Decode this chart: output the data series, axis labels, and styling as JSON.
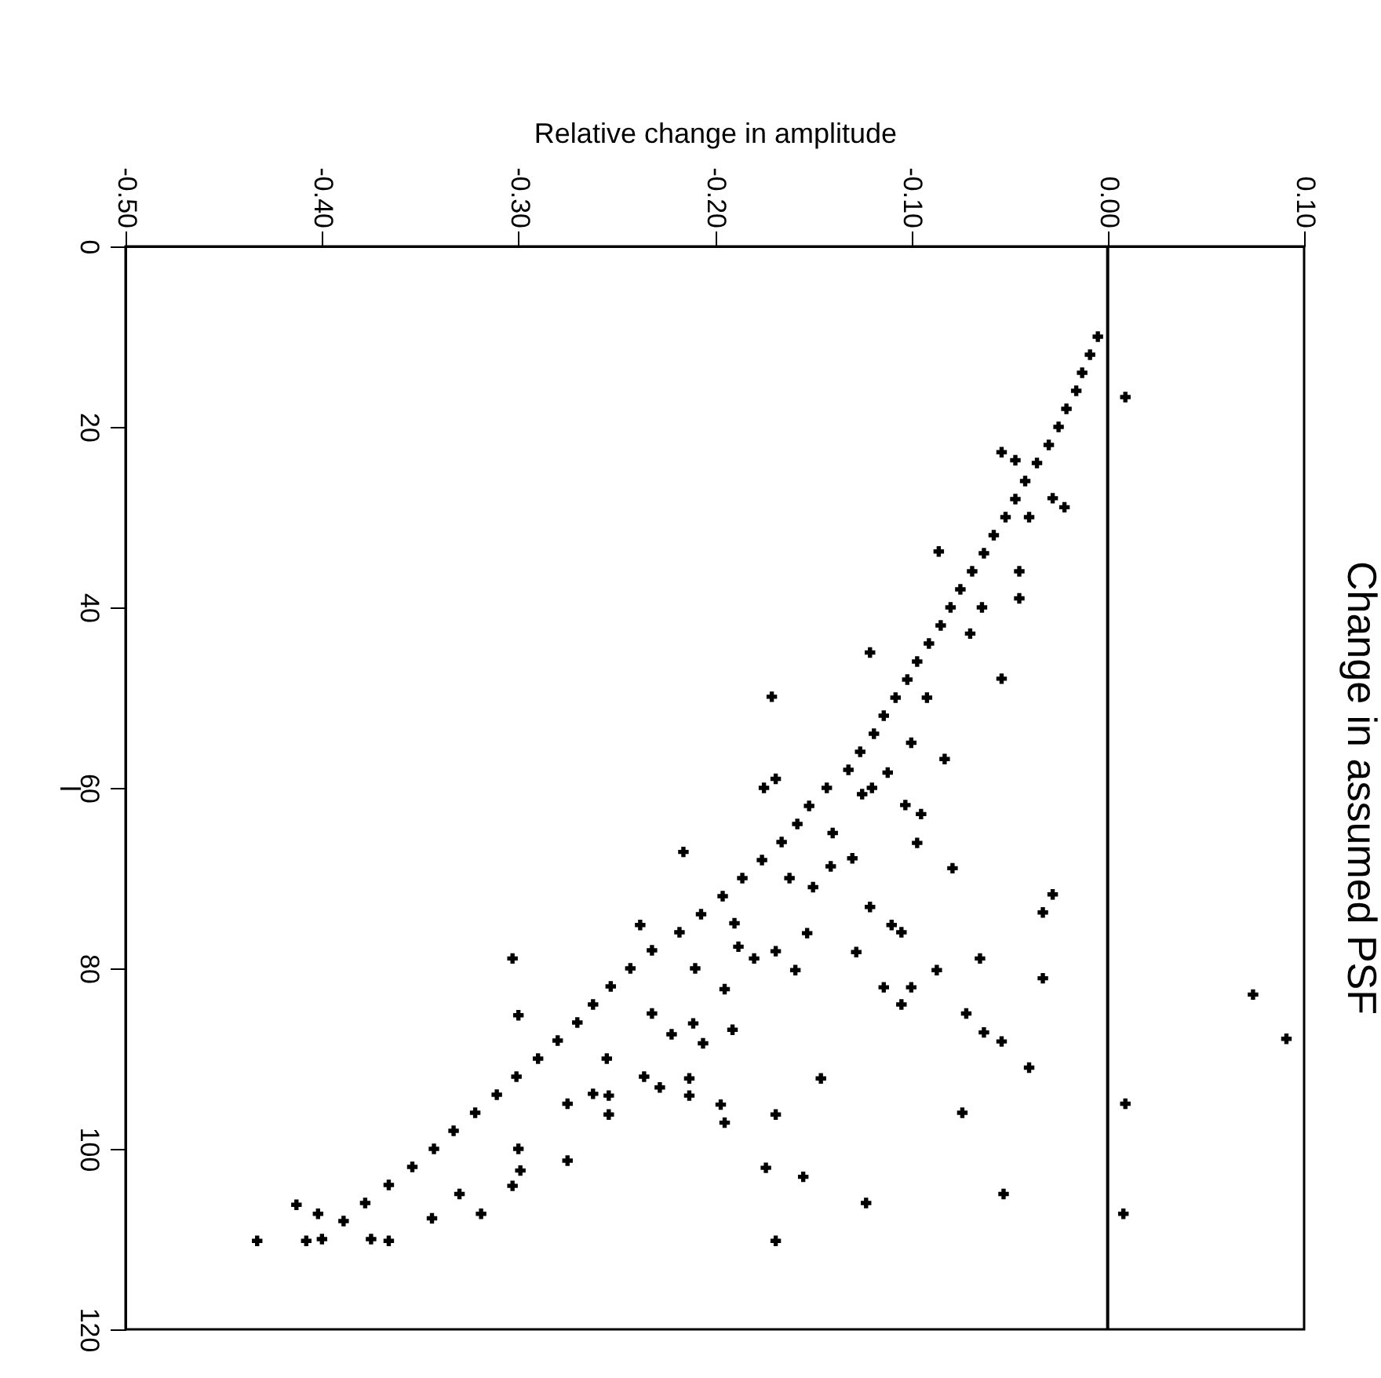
{
  "chart_data": {
    "type": "scatter",
    "title": "Change in assumed PSF",
    "xlabel": "Relative change in amplitude",
    "ylabel": "l",
    "xlim": [
      -0.5,
      0.1
    ],
    "xticks": [
      {
        "value": -0.5,
        "label": "-0.50"
      },
      {
        "value": -0.4,
        "label": "-0.40"
      },
      {
        "value": -0.3,
        "label": "-0.30"
      },
      {
        "value": -0.2,
        "label": "-0.20"
      },
      {
        "value": -0.1,
        "label": "-0.10"
      },
      {
        "value": 0,
        "label": "0.00"
      },
      {
        "value": 0.1,
        "label": "0.10"
      }
    ],
    "ylim": [
      120,
      0
    ],
    "yticks": [
      0,
      20,
      40,
      60,
      80,
      100,
      120
    ],
    "grid": false,
    "marker": "cross",
    "ref_lines": [
      {
        "axis": "x",
        "value": 0,
        "color": "#000000"
      }
    ],
    "series": [
      {
        "color": "#000000",
        "x": [
          -0.005,
          -0.009,
          -0.013,
          -0.016,
          -0.021,
          -0.025,
          -0.03,
          -0.036,
          -0.042,
          -0.047,
          -0.052,
          -0.058,
          -0.063,
          -0.069,
          -0.075,
          -0.08,
          -0.085,
          -0.091,
          -0.097,
          -0.102,
          -0.108,
          -0.114,
          -0.119,
          -0.126,
          -0.132,
          -0.143,
          -0.152,
          -0.158,
          -0.166,
          -0.176,
          -0.186,
          -0.196,
          -0.207,
          -0.218,
          -0.232,
          -0.243,
          -0.253,
          -0.262,
          -0.27,
          -0.28,
          -0.29,
          -0.301,
          -0.311,
          -0.322,
          -0.333,
          -0.343,
          -0.354,
          -0.366,
          -0.378,
          -0.389,
          -0.4,
          -0.04,
          -0.064,
          -0.092,
          -0.1,
          -0.12,
          -0.14,
          -0.162,
          -0.19,
          -0.21,
          -0.232,
          -0.255,
          -0.275,
          -0.3,
          -0.33,
          -0.375,
          0.009,
          -0.054,
          -0.047,
          -0.022,
          -0.028,
          -0.086,
          -0.045,
          -0.045,
          -0.054,
          -0.121,
          -0.07,
          -0.171,
          -0.175,
          -0.169,
          -0.216,
          -0.083,
          -0.095,
          -0.097,
          -0.079,
          -0.121,
          -0.11,
          -0.105,
          -0.028,
          -0.033,
          -0.033,
          -0.065,
          -0.087,
          -0.128,
          -0.153,
          -0.114,
          -0.1,
          -0.105,
          -0.072,
          -0.063,
          -0.054,
          -0.04,
          -0.074,
          -0.146,
          -0.169,
          -0.174,
          -0.155,
          -0.123,
          -0.053,
          -0.169,
          0.009,
          0.008,
          0.074,
          0.091,
          -0.303,
          -0.3,
          -0.197,
          -0.195,
          -0.236,
          -0.228,
          -0.213,
          -0.213,
          -0.254,
          -0.254,
          -0.262,
          -0.275,
          -0.299,
          -0.303,
          -0.319,
          -0.433,
          -0.413,
          -0.402,
          -0.408,
          -0.366,
          -0.344,
          -0.238,
          -0.191,
          -0.211,
          -0.206,
          -0.222,
          -0.195,
          -0.18,
          -0.159,
          -0.188,
          -0.169,
          -0.15,
          -0.141,
          -0.13,
          -0.125,
          -0.103,
          -0.112
        ],
        "values": [
          10,
          12,
          14,
          16,
          18,
          20,
          22,
          24,
          26,
          28,
          30,
          32,
          34,
          36,
          38,
          40,
          42,
          44,
          46,
          48,
          50,
          52,
          54,
          56,
          58,
          60,
          62,
          64,
          66,
          68,
          70,
          72,
          74,
          76,
          78,
          80,
          82,
          84,
          86,
          88,
          90,
          92,
          94,
          96,
          98,
          100,
          102,
          104,
          106,
          108,
          110,
          30,
          40,
          50,
          55,
          60,
          65,
          70,
          75,
          80,
          85,
          90,
          95,
          100,
          105,
          110,
          16.7,
          22.8,
          23.7,
          28.9,
          27.9,
          33.8,
          36,
          39,
          47.9,
          45,
          42.9,
          49.9,
          60,
          59,
          67.1,
          56.8,
          62.9,
          66.1,
          68.9,
          73.2,
          75.2,
          76,
          71.8,
          73.8,
          81.1,
          78.9,
          80.2,
          78.2,
          76.1,
          82.1,
          82.1,
          84,
          85,
          87.1,
          88.1,
          91,
          96,
          92.2,
          96.2,
          102.1,
          103.1,
          106,
          105,
          110.2,
          95,
          107.2,
          82.9,
          87.8,
          78.9,
          85.2,
          95.1,
          97.1,
          92,
          93.2,
          92.2,
          94.1,
          96.2,
          94.1,
          93.9,
          101.3,
          102.4,
          104.1,
          107.2,
          110.2,
          106.2,
          107.2,
          110.2,
          110.2,
          107.7,
          75.2,
          86.8,
          86.1,
          88.3,
          87.3,
          82.3,
          78.9,
          80.2,
          77.6,
          78.1,
          71,
          68.7,
          67.8,
          60.7,
          61.9,
          58.3
        ]
      }
    ]
  }
}
